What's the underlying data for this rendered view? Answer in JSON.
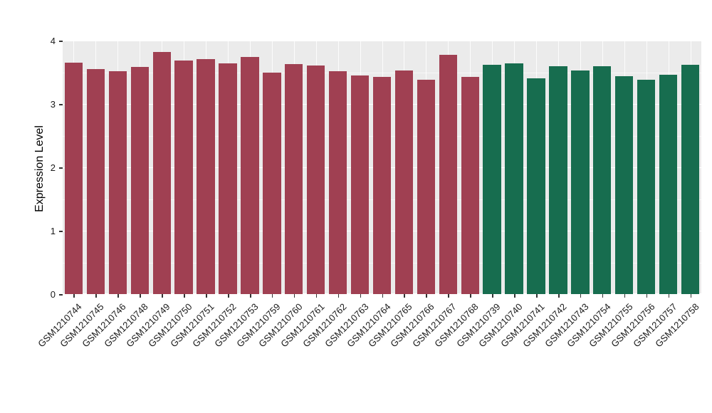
{
  "chart_data": {
    "type": "bar",
    "title": "",
    "xlabel": "",
    "ylabel": "Expression Level",
    "ylim": [
      0,
      4
    ],
    "yticks": [
      0,
      1,
      2,
      3,
      4
    ],
    "grid": "on",
    "legend": "none",
    "panel_background": "#EBEBEB",
    "grid_color": "#FFFFFF",
    "categories": [
      "GSM1210744",
      "GSM1210745",
      "GSM1210746",
      "GSM1210748",
      "GSM1210749",
      "GSM1210750",
      "GSM1210751",
      "GSM1210752",
      "GSM1210753",
      "GSM1210759",
      "GSM1210760",
      "GSM1210761",
      "GSM1210762",
      "GSM1210763",
      "GSM1210764",
      "GSM1210765",
      "GSM1210766",
      "GSM1210767",
      "GSM1210768",
      "GSM1210739",
      "GSM1210740",
      "GSM1210741",
      "GSM1210742",
      "GSM1210743",
      "GSM1210754",
      "GSM1210755",
      "GSM1210756",
      "GSM1210757",
      "GSM1210758"
    ],
    "values": [
      3.65,
      3.55,
      3.52,
      3.58,
      3.82,
      3.68,
      3.71,
      3.64,
      3.74,
      3.5,
      3.63,
      3.61,
      3.52,
      3.45,
      3.43,
      3.53,
      3.38,
      3.78,
      3.43,
      3.62,
      3.64,
      3.4,
      3.6,
      3.53,
      3.6,
      3.44,
      3.38,
      3.46,
      3.62
    ],
    "groups": [
      "group1",
      "group1",
      "group1",
      "group1",
      "group1",
      "group1",
      "group1",
      "group1",
      "group1",
      "group1",
      "group1",
      "group1",
      "group1",
      "group1",
      "group1",
      "group1",
      "group1",
      "group1",
      "group1",
      "group2",
      "group2",
      "group2",
      "group2",
      "group2",
      "group2",
      "group2",
      "group2",
      "group2",
      "group2"
    ],
    "group_colors": {
      "group1": "#A04052",
      "group2": "#176D4F"
    }
  }
}
